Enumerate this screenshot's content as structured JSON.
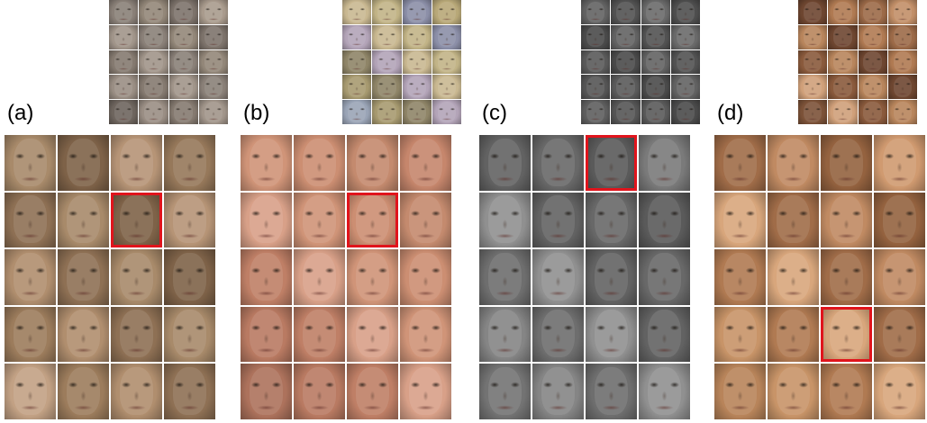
{
  "colors": {
    "highlight": "#e0141c"
  },
  "panels": [
    {
      "label": "(a)",
      "highlight": {
        "row": 1,
        "col": 2
      },
      "small_palette": [
        "#8a8078",
        "#9a8e84",
        "#7d736b",
        "#a1958a",
        "#6e655e",
        "#938779",
        "#857a70",
        "#a99b8d"
      ],
      "large_palette": [
        "#a88a6a",
        "#9c7c5c",
        "#b69476",
        "#8e7054",
        "#c2a184",
        "#7e6248",
        "#b08e6e",
        "#96785a"
      ]
    },
    {
      "label": "(b)",
      "highlight": {
        "row": 1,
        "col": 2
      },
      "small_palette": [
        "#b8a878",
        "#c9b891",
        "#a79a70",
        "#8c8fa8",
        "#b3a4b8",
        "#9aa4b6",
        "#c2b487",
        "#8f8568"
      ],
      "large_palette": [
        "#c6866c",
        "#d09478",
        "#b97a62",
        "#c48a6e",
        "#d8a088",
        "#ad725c",
        "#cc8e72",
        "#bf7f66"
      ]
    },
    {
      "label": "(c)",
      "highlight": {
        "row": 0,
        "col": 2
      },
      "small_palette": [
        "#5a5a5a",
        "#4e4e4e",
        "#626262",
        "#555555",
        "#6a6a6a",
        "#4a4a4a",
        "#5e5e5e",
        "#525252"
      ],
      "large_palette": [
        "#6e6e6e",
        "#7a7a7a",
        "#626262",
        "#858585",
        "#5a5a5a",
        "#909090",
        "#737373",
        "#686868"
      ]
    },
    {
      "label": "(d)",
      "highlight": {
        "row": 3,
        "col": 2
      },
      "small_palette": [
        "#b07a52",
        "#8a5a3c",
        "#c28f68",
        "#6e4630",
        "#d0a07a",
        "#9c6a48",
        "#b8855c",
        "#7c5238"
      ],
      "large_palette": [
        "#c08a62",
        "#b07a52",
        "#d09a70",
        "#a06c48",
        "#c89468",
        "#94623f",
        "#d8a67c",
        "#b8845a"
      ]
    }
  ]
}
